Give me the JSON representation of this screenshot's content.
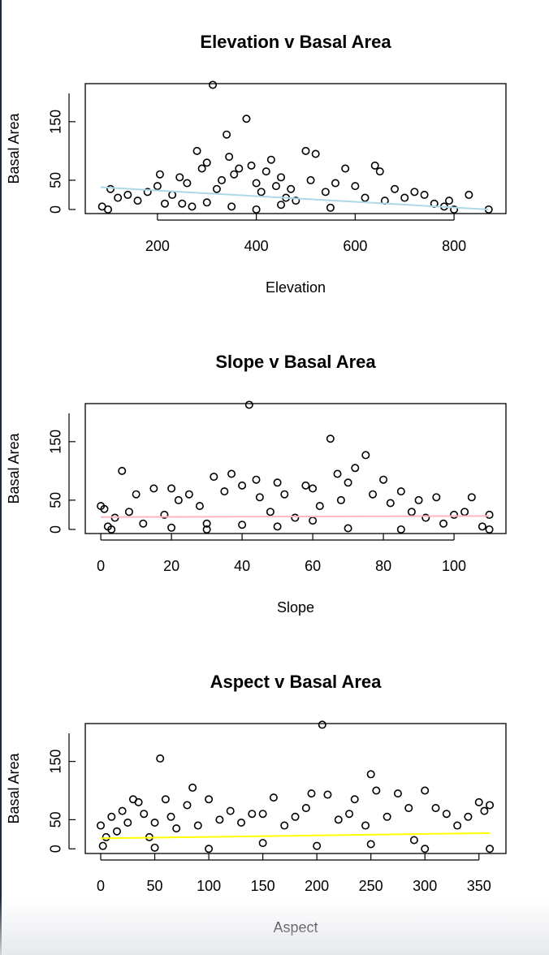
{
  "chart_data": [
    {
      "type": "scatter",
      "title": "Elevation v Basal Area",
      "xlabel": "Elevation",
      "ylabel": "Basal Area",
      "x": [
        88,
        100,
        105,
        120,
        140,
        160,
        180,
        200,
        205,
        215,
        230,
        245,
        260,
        270,
        280,
        290,
        300,
        312,
        320,
        330,
        340,
        345,
        355,
        365,
        380,
        390,
        400,
        410,
        420,
        430,
        440,
        450,
        460,
        470,
        480,
        500,
        510,
        520,
        540,
        560,
        580,
        600,
        620,
        640,
        650,
        660,
        680,
        700,
        720,
        740,
        760,
        780,
        790,
        800,
        830,
        870,
        250,
        350,
        450,
        550,
        300,
        400
      ],
      "y": [
        5,
        0,
        35,
        20,
        25,
        15,
        30,
        40,
        60,
        10,
        25,
        55,
        45,
        5,
        100,
        70,
        80,
        213,
        35,
        50,
        128,
        90,
        60,
        70,
        155,
        75,
        45,
        30,
        65,
        85,
        40,
        55,
        20,
        35,
        15,
        100,
        50,
        95,
        30,
        45,
        70,
        40,
        20,
        75,
        65,
        15,
        35,
        20,
        30,
        25,
        10,
        5,
        15,
        0,
        25,
        0,
        10,
        5,
        8,
        3,
        12,
        0
      ],
      "point_color": "#000000",
      "trend": {
        "color": "#add8e6",
        "x": [
          85,
          870
        ],
        "y": [
          38,
          0
        ]
      },
      "xlim": [
        54,
        905
      ],
      "ylim": [
        -7,
        215
      ],
      "xticks": [
        200,
        400,
        600,
        800
      ],
      "yticks": [
        0,
        50,
        150
      ]
    },
    {
      "type": "scatter",
      "title": "Slope v Basal Area",
      "xlabel": "Slope",
      "ylabel": "Basal Area",
      "x": [
        0,
        1,
        2,
        3,
        4,
        6,
        8,
        10,
        12,
        15,
        18,
        20,
        22,
        25,
        28,
        30,
        32,
        35,
        37,
        40,
        42,
        44,
        45,
        48,
        50,
        52,
        55,
        58,
        60,
        62,
        65,
        67,
        68,
        70,
        72,
        75,
        77,
        80,
        82,
        85,
        88,
        90,
        92,
        95,
        97,
        100,
        103,
        105,
        108,
        110,
        110,
        30,
        50,
        70,
        60,
        40,
        20,
        85
      ],
      "y": [
        40,
        35,
        5,
        0,
        20,
        100,
        30,
        60,
        10,
        70,
        25,
        70,
        50,
        60,
        40,
        10,
        90,
        65,
        95,
        75,
        213,
        85,
        55,
        30,
        80,
        60,
        20,
        75,
        70,
        40,
        155,
        95,
        50,
        80,
        105,
        127,
        60,
        85,
        45,
        65,
        30,
        50,
        20,
        55,
        10,
        25,
        30,
        55,
        5,
        25,
        0,
        0,
        5,
        2,
        15,
        8,
        3,
        0
      ],
      "point_color": "#000000",
      "trend": {
        "color": "#ffb6c1",
        "x": [
          0,
          110
        ],
        "y": [
          21,
          23
        ]
      },
      "xlim": [
        -4.4,
        114.7
      ],
      "ylim": [
        -7,
        215
      ],
      "xticks": [
        0,
        20,
        40,
        60,
        80,
        100
      ],
      "yticks": [
        0,
        50,
        150
      ]
    },
    {
      "type": "scatter",
      "title": "Aspect v Basal Area",
      "xlabel": "Aspect",
      "ylabel": "Basal Area",
      "x": [
        0,
        2,
        5,
        10,
        15,
        20,
        25,
        30,
        35,
        40,
        45,
        50,
        55,
        60,
        65,
        70,
        80,
        85,
        90,
        100,
        110,
        120,
        130,
        140,
        150,
        160,
        170,
        180,
        190,
        195,
        205,
        210,
        220,
        230,
        235,
        245,
        250,
        255,
        265,
        275,
        285,
        290,
        300,
        310,
        320,
        330,
        340,
        350,
        355,
        360,
        360,
        100,
        200,
        300,
        150,
        50,
        250
      ],
      "y": [
        40,
        5,
        20,
        55,
        30,
        65,
        45,
        85,
        80,
        60,
        20,
        45,
        155,
        85,
        55,
        35,
        75,
        105,
        40,
        85,
        50,
        65,
        45,
        60,
        60,
        88,
        40,
        55,
        70,
        95,
        213,
        93,
        50,
        60,
        85,
        40,
        128,
        100,
        55,
        95,
        70,
        15,
        100,
        70,
        60,
        40,
        55,
        80,
        65,
        75,
        0,
        0,
        5,
        0,
        10,
        2,
        8
      ],
      "point_color": "#000000",
      "trend": {
        "color": "#ffff00",
        "x": [
          0,
          360
        ],
        "y": [
          18,
          27
        ]
      },
      "xlim": [
        -14.3,
        375
      ],
      "ylim": [
        -8,
        215
      ],
      "xticks": [
        0,
        50,
        100,
        150,
        200,
        250,
        300,
        350
      ],
      "yticks": [
        0,
        50,
        150
      ]
    }
  ]
}
